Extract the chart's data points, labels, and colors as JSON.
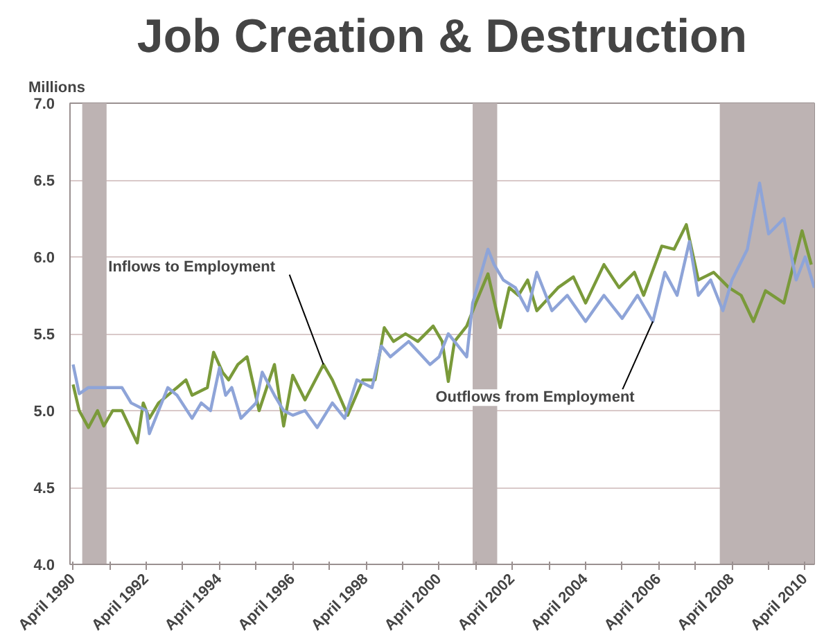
{
  "chart_data": {
    "type": "line",
    "title": "Job Creation & Destruction",
    "ylabel": "Millions",
    "x": [
      "1990-04",
      "1990-06",
      "1990-09",
      "1990-12",
      "1991-02",
      "1991-05",
      "1991-08",
      "1992-01",
      "1992-03",
      "1992-05",
      "1992-08",
      "1993-02",
      "1993-05",
      "1993-07",
      "1993-12",
      "1994-02",
      "1994-05",
      "1994-07",
      "1994-10",
      "1995-01",
      "1995-05",
      "1995-10",
      "1996-01",
      "1996-04",
      "1996-08",
      "1997-02",
      "1997-05",
      "1997-10",
      "1998-03",
      "1998-07",
      "1998-10",
      "1999-01",
      "1999-05",
      "1999-09",
      "2000-02",
      "2000-05",
      "2000-07",
      "2000-09",
      "2001-01",
      "2001-04",
      "2001-08",
      "2001-12",
      "2002-03",
      "2002-06",
      "2002-09",
      "2002-12",
      "2003-07",
      "2003-12",
      "2004-04",
      "2004-10",
      "2005-03",
      "2005-08",
      "2005-11",
      "2006-05",
      "2006-09",
      "2007-01",
      "2007-05",
      "2007-10",
      "2008-03",
      "2008-07",
      "2008-11",
      "2009-03",
      "2009-09",
      "2010-03",
      "2010-06"
    ],
    "series": [
      {
        "color": "#7a9a3a",
        "values": [
          5.17,
          5.0,
          4.89,
          5.0,
          4.9,
          5.0,
          5.0,
          4.79,
          5.05,
          4.95,
          5.05,
          5.15,
          5.2,
          5.1,
          5.15,
          5.38,
          5.25,
          5.2,
          5.3,
          5.35,
          5.0,
          5.3,
          4.9,
          5.23,
          5.07,
          5.3,
          5.2,
          4.97,
          5.2,
          5.2,
          5.54,
          5.45,
          5.5,
          5.45,
          5.55,
          5.45,
          5.19,
          5.45,
          5.55,
          5.7,
          5.89,
          5.54,
          5.8,
          5.75,
          5.85,
          5.65,
          5.8,
          5.87,
          5.7,
          5.95,
          5.8,
          5.9,
          5.75,
          6.07,
          6.05,
          6.21,
          5.85,
          5.9,
          5.8,
          5.75,
          5.58,
          5.78,
          5.7,
          6.17,
          5.95
        ]
      },
      {
        "color": "#8ea4d8",
        "x": [
          "1990-04",
          "1990-06",
          "1990-09",
          "1991-08",
          "1991-11",
          "1992-04",
          "1992-05",
          "1992-08",
          "1992-11",
          "1993-02",
          "1993-07",
          "1993-10",
          "1994-01",
          "1994-04",
          "1994-06",
          "1994-08",
          "1994-11",
          "1995-04",
          "1995-06",
          "1995-10",
          "1996-01",
          "1996-04",
          "1996-08",
          "1996-12",
          "1997-05",
          "1997-09",
          "1998-01",
          "1998-06",
          "1998-09",
          "1998-12",
          "1999-06",
          "2000-01",
          "2000-04",
          "2000-07",
          "2000-09",
          "2001-01",
          "2001-03",
          "2001-08",
          "2001-10",
          "2002-01",
          "2002-05",
          "2002-09",
          "2002-12",
          "2003-05",
          "2003-10",
          "2004-04",
          "2004-10",
          "2005-04",
          "2005-09",
          "2006-02",
          "2006-06",
          "2006-10",
          "2007-02",
          "2007-05",
          "2007-09",
          "2008-01",
          "2008-04",
          "2008-09",
          "2009-01",
          "2009-04",
          "2009-09",
          "2010-01",
          "2010-04",
          "2010-07"
        ],
        "values": [
          5.3,
          5.11,
          5.15,
          5.15,
          5.05,
          5.0,
          4.85,
          5.0,
          5.15,
          5.1,
          4.95,
          5.05,
          5.0,
          5.28,
          5.1,
          5.15,
          4.95,
          5.05,
          5.25,
          5.1,
          5.0,
          4.97,
          5.0,
          4.89,
          5.05,
          4.95,
          5.2,
          5.15,
          5.42,
          5.35,
          5.45,
          5.3,
          5.35,
          5.5,
          5.45,
          5.35,
          5.7,
          6.05,
          5.95,
          5.85,
          5.8,
          5.65,
          5.9,
          5.65,
          5.75,
          5.58,
          5.75,
          5.6,
          5.75,
          5.58,
          5.9,
          5.75,
          6.1,
          5.75,
          5.85,
          5.65,
          5.85,
          6.05,
          6.48,
          6.15,
          6.25,
          5.85,
          6.0,
          5.8
        ]
      }
    ],
    "xlim": [
      "1990-03",
      "2010-07"
    ],
    "xticks": [
      {
        "value": "1990-04",
        "label": "April 1990"
      },
      {
        "value": "1991-04",
        "label": null
      },
      {
        "value": "1992-04",
        "label": "April 1992"
      },
      {
        "value": "1993-04",
        "label": null
      },
      {
        "value": "1994-04",
        "label": "April 1994"
      },
      {
        "value": "1995-04",
        "label": null
      },
      {
        "value": "1996-04",
        "label": "April 1996"
      },
      {
        "value": "1997-04",
        "label": null
      },
      {
        "value": "1998-04",
        "label": "April 1998"
      },
      {
        "value": "1999-04",
        "label": null
      },
      {
        "value": "2000-04",
        "label": "April 2000"
      },
      {
        "value": "2001-04",
        "label": null
      },
      {
        "value": "2002-04",
        "label": "April 2002"
      },
      {
        "value": "2003-04",
        "label": null
      },
      {
        "value": "2004-04",
        "label": "April 2004"
      },
      {
        "value": "2005-04",
        "label": null
      },
      {
        "value": "2006-04",
        "label": "April 2006"
      },
      {
        "value": "2007-04",
        "label": null
      },
      {
        "value": "2008-04",
        "label": "April 2008"
      },
      {
        "value": "2009-04",
        "label": null
      },
      {
        "value": "2010-04",
        "label": "April 2010"
      }
    ],
    "ylim": [
      4.0,
      7.0
    ],
    "yticks": [
      {
        "value": 4.0,
        "label": "4.0"
      },
      {
        "value": 4.5,
        "label": "4.5"
      },
      {
        "value": 5.0,
        "label": "5.0"
      },
      {
        "value": 5.5,
        "label": "5.5"
      },
      {
        "value": 6.0,
        "label": "6.0"
      },
      {
        "value": 6.5,
        "label": "6.5"
      },
      {
        "value": 7.0,
        "label": "7.0"
      }
    ],
    "grid": "y",
    "marker": "none",
    "line_style": "solid",
    "bands": [
      {
        "axis": "x",
        "from": "1990-07",
        "to": "1991-03",
        "color": "#bdb3b3"
      },
      {
        "axis": "x",
        "from": "2001-03",
        "to": "2001-11",
        "color": "#bdb3b3"
      },
      {
        "axis": "x",
        "from": "2007-12",
        "to": "2010-07",
        "color": "#bdb3b3"
      }
    ],
    "annotations": [
      {
        "text": "Inflows to Employment",
        "x": "1997-02",
        "y": 5.3
      },
      {
        "text": "Outflows from Employment",
        "x": "2006-02",
        "y": 5.58
      }
    ]
  }
}
